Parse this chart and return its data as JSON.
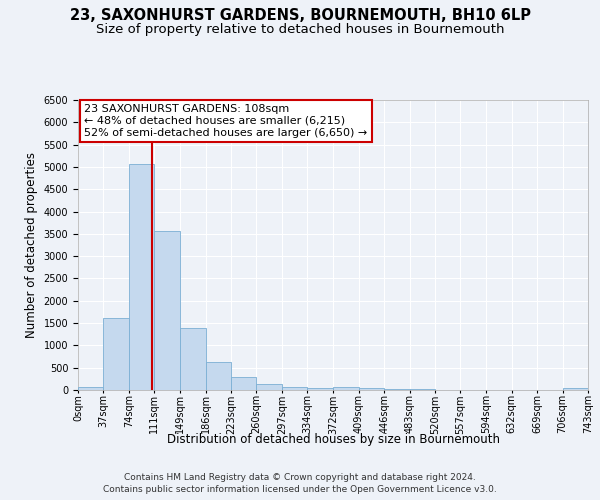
{
  "title": "23, SAXONHURST GARDENS, BOURNEMOUTH, BH10 6LP",
  "subtitle": "Size of property relative to detached houses in Bournemouth",
  "xlabel": "Distribution of detached houses by size in Bournemouth",
  "ylabel": "Number of detached properties",
  "bar_color": "#c5d9ee",
  "bar_edge_color": "#7bafd4",
  "background_color": "#eef2f8",
  "grid_color": "#ffffff",
  "annotation_line1": "23 SAXONHURST GARDENS: 108sqm",
  "annotation_line2": "← 48% of detached houses are smaller (6,215)",
  "annotation_line3": "52% of semi-detached houses are larger (6,650) →",
  "vline_x": 108,
  "vline_color": "#cc0000",
  "footer_line1": "Contains HM Land Registry data © Crown copyright and database right 2024.",
  "footer_line2": "Contains public sector information licensed under the Open Government Licence v3.0.",
  "bin_edges": [
    0,
    37,
    74,
    111,
    149,
    186,
    223,
    260,
    297,
    334,
    372,
    409,
    446,
    483,
    520,
    557,
    594,
    632,
    669,
    706,
    743
  ],
  "bar_heights": [
    75,
    1625,
    5075,
    3575,
    1400,
    625,
    300,
    135,
    75,
    45,
    75,
    55,
    30,
    20,
    10,
    10,
    5,
    5,
    5,
    50
  ],
  "tick_labels": [
    "0sqm",
    "37sqm",
    "74sqm",
    "111sqm",
    "149sqm",
    "186sqm",
    "223sqm",
    "260sqm",
    "297sqm",
    "334sqm",
    "372sqm",
    "409sqm",
    "446sqm",
    "483sqm",
    "520sqm",
    "557sqm",
    "594sqm",
    "632sqm",
    "669sqm",
    "706sqm",
    "743sqm"
  ],
  "ylim": [
    0,
    6500
  ],
  "xlim": [
    0,
    743
  ],
  "title_fontsize": 10.5,
  "subtitle_fontsize": 9.5,
  "axis_label_fontsize": 8.5,
  "tick_fontsize": 7,
  "annotation_fontsize": 8,
  "footer_fontsize": 6.5
}
